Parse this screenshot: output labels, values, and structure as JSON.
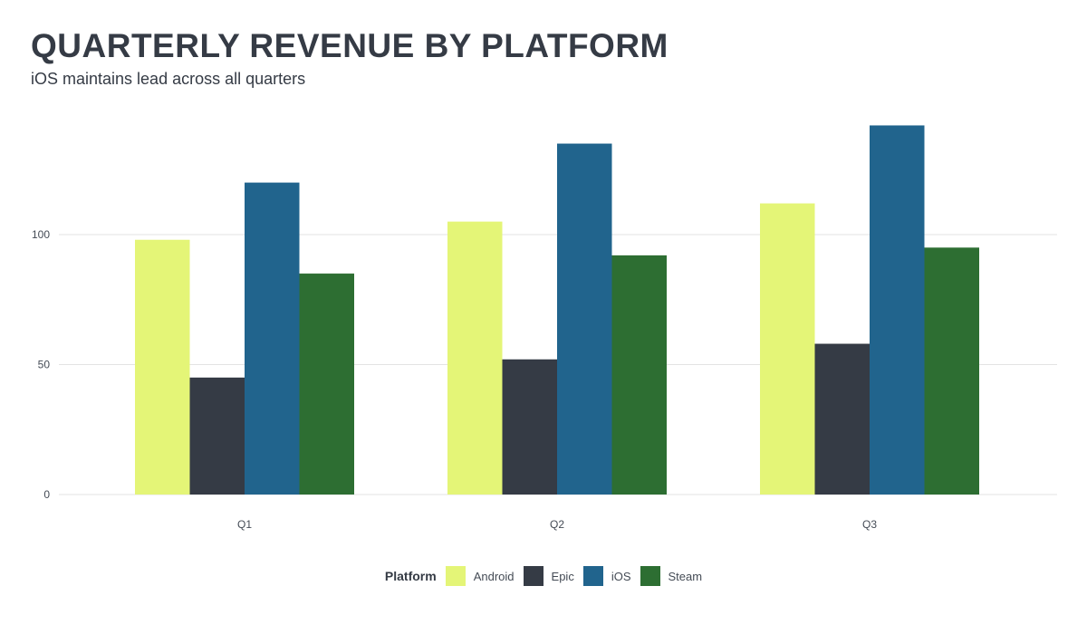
{
  "chart_data": {
    "type": "bar",
    "title": "QUARTERLY REVENUE BY PLATFORM",
    "subtitle": "iOS maintains lead across all quarters",
    "xlabel": "",
    "ylabel": "",
    "categories": [
      "Q1",
      "Q2",
      "Q3"
    ],
    "series": [
      {
        "name": "Android",
        "color": "#e4f577",
        "values": [
          98,
          105,
          112
        ]
      },
      {
        "name": "Epic",
        "color": "#353b45",
        "values": [
          45,
          52,
          58
        ]
      },
      {
        "name": "iOS",
        "color": "#21648d",
        "values": [
          120,
          135,
          142
        ]
      },
      {
        "name": "Steam",
        "color": "#2d6e32",
        "values": [
          85,
          92,
          95
        ]
      }
    ],
    "yticks": [
      0,
      50,
      100
    ],
    "ylim": [
      0,
      142
    ],
    "grid": true,
    "legend": {
      "title": "Platform",
      "position": "bottom"
    }
  }
}
